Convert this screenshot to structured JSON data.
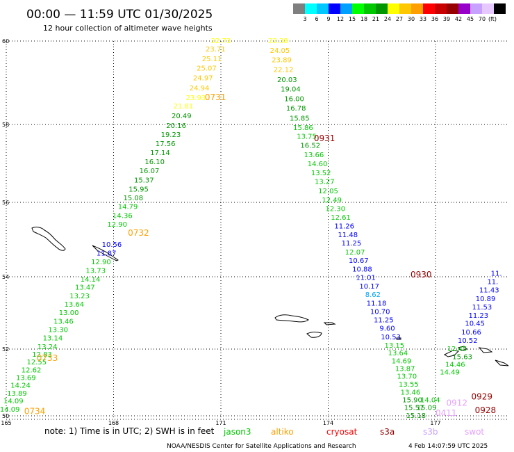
{
  "title": "00:00 — 11:59 UTC 01/30/2025",
  "subtitle": "12 hour collection of altimeter wave heights",
  "scale": {
    "unit": "(ft)",
    "colors": [
      "#7f7f7f",
      "#00ffff",
      "#00c8ff",
      "#0000ff",
      "#00a0ff",
      "#00ff00",
      "#00c800",
      "#009600",
      "#ffff00",
      "#ffc800",
      "#ffa000",
      "#ff0000",
      "#c80000",
      "#960000",
      "#9600c8",
      "#c8a0ff",
      "#e6c8ff",
      "#000000"
    ],
    "labels": [
      "3",
      "6",
      "9",
      "12",
      "15",
      "18",
      "21",
      "24",
      "27",
      "30",
      "33",
      "36",
      "39",
      "42",
      "45",
      "70"
    ]
  },
  "map": {
    "lat_range": [
      50,
      60
    ],
    "lon_range": [
      165,
      178.5
    ],
    "lat_lines": [
      60,
      58,
      56,
      54,
      52,
      50
    ],
    "lat_labels": [
      "60",
      "58",
      "56",
      "54",
      "52",
      "50"
    ],
    "lon_lines": [
      165,
      168,
      171,
      174,
      177
    ],
    "lon_labels": [
      "165",
      "168",
      "171",
      "174",
      "177"
    ]
  },
  "passes": [
    {
      "label": "0731",
      "color": "#ffa000",
      "lat": 58.58,
      "lon": 170.55
    },
    {
      "label": "0931",
      "color": "#960000",
      "lat": 57.57,
      "lon": 173.6
    },
    {
      "label": "0732",
      "color": "#ffa000",
      "lat": 55.1,
      "lon": 168.4
    },
    {
      "label": "0930",
      "color": "#960000",
      "lat": 53.98,
      "lon": 176.3
    },
    {
      "label": "0733",
      "color": "#ffa000",
      "lat": 51.65,
      "lon": 165.85
    },
    {
      "label": "0734",
      "color": "#ffa000",
      "lat": 50.05,
      "lon": 165.5
    },
    {
      "label": "0929",
      "color": "#960000",
      "lat": 50.49,
      "lon": 178.0
    },
    {
      "label": "0928",
      "color": "#960000",
      "lat": 50.08,
      "lon": 178.1
    },
    {
      "label": "0912",
      "color": "#e6a0ff",
      "lat": 50.3,
      "lon": 177.3
    },
    {
      "label": "0411",
      "color": "#e6a0ff",
      "lat": 50.0,
      "lon": 177.0
    }
  ],
  "observations": [
    {
      "v": "22.73",
      "c": "#ffff00",
      "lat": 59.95,
      "lon": 171.0
    },
    {
      "v": "23.71",
      "c": "#ffc800",
      "lat": 59.75,
      "lon": 170.85
    },
    {
      "v": "25.11",
      "c": "#ffc800",
      "lat": 59.52,
      "lon": 170.75
    },
    {
      "v": "25.07",
      "c": "#ffc800",
      "lat": 59.29,
      "lon": 170.6
    },
    {
      "v": "24.97",
      "c": "#ffc800",
      "lat": 59.06,
      "lon": 170.5
    },
    {
      "v": "24.94",
      "c": "#ffc800",
      "lat": 58.82,
      "lon": 170.4
    },
    {
      "v": "23.93",
      "c": "#ffff00",
      "lat": 58.58,
      "lon": 170.3
    },
    {
      "v": "21.81",
      "c": "#ffff00",
      "lat": 58.38,
      "lon": 169.95
    },
    {
      "v": "20.49",
      "c": "#009600",
      "lat": 58.15,
      "lon": 169.9
    },
    {
      "v": "20.16",
      "c": "#009600",
      "lat": 57.91,
      "lon": 169.75
    },
    {
      "v": "19.23",
      "c": "#009600",
      "lat": 57.68,
      "lon": 169.6
    },
    {
      "v": "17.56",
      "c": "#009600",
      "lat": 57.45,
      "lon": 169.45
    },
    {
      "v": "17.14",
      "c": "#009600",
      "lat": 57.21,
      "lon": 169.3
    },
    {
      "v": "16.10",
      "c": "#009600",
      "lat": 56.98,
      "lon": 169.15
    },
    {
      "v": "16.07",
      "c": "#009600",
      "lat": 56.75,
      "lon": 169.0
    },
    {
      "v": "15.37",
      "c": "#009600",
      "lat": 56.51,
      "lon": 168.85
    },
    {
      "v": "15.95",
      "c": "#009600",
      "lat": 56.28,
      "lon": 168.7
    },
    {
      "v": "15.08",
      "c": "#009600",
      "lat": 56.05,
      "lon": 168.55
    },
    {
      "v": "14.79",
      "c": "#00c800",
      "lat": 55.82,
      "lon": 168.4
    },
    {
      "v": "14.36",
      "c": "#00c800",
      "lat": 55.58,
      "lon": 168.25
    },
    {
      "v": "12.90",
      "c": "#00c800",
      "lat": 55.35,
      "lon": 168.1
    },
    {
      "v": "10.56",
      "c": "#0000ff",
      "lat": 54.8,
      "lon": 167.95
    },
    {
      "v": "11.87",
      "c": "#0000ff",
      "lat": 54.57,
      "lon": 167.8
    },
    {
      "v": "12.90",
      "c": "#00c800",
      "lat": 54.34,
      "lon": 167.65
    },
    {
      "v": "13.73",
      "c": "#00c800",
      "lat": 54.1,
      "lon": 167.5
    },
    {
      "v": "14.14",
      "c": "#00c800",
      "lat": 53.87,
      "lon": 167.35
    },
    {
      "v": "13.47",
      "c": "#00c800",
      "lat": 53.64,
      "lon": 167.2
    },
    {
      "v": "13.23",
      "c": "#00c800",
      "lat": 53.4,
      "lon": 167.05
    },
    {
      "v": "13.64",
      "c": "#00c800",
      "lat": 53.17,
      "lon": 166.9
    },
    {
      "v": "13.00",
      "c": "#00c800",
      "lat": 52.94,
      "lon": 166.75
    },
    {
      "v": "13.46",
      "c": "#00c800",
      "lat": 52.7,
      "lon": 166.6
    },
    {
      "v": "13.30",
      "c": "#00c800",
      "lat": 52.47,
      "lon": 166.45
    },
    {
      "v": "13.14",
      "c": "#00c800",
      "lat": 52.24,
      "lon": 166.3
    },
    {
      "v": "13.24",
      "c": "#00c800",
      "lat": 52.0,
      "lon": 166.15
    },
    {
      "v": "12.83",
      "c": "#00c800",
      "lat": 51.77,
      "lon": 166.0
    },
    {
      "v": "12.55",
      "c": "#00c800",
      "lat": 51.54,
      "lon": 165.85
    },
    {
      "v": "12.62",
      "c": "#00c800",
      "lat": 51.3,
      "lon": 165.7
    },
    {
      "v": "13.69",
      "c": "#00c800",
      "lat": 51.07,
      "lon": 165.55
    },
    {
      "v": "14.24",
      "c": "#00c800",
      "lat": 50.84,
      "lon": 165.4
    },
    {
      "v": "13.89",
      "c": "#00c800",
      "lat": 50.6,
      "lon": 165.3
    },
    {
      "v": "14.09",
      "c": "#00c800",
      "lat": 50.37,
      "lon": 165.2
    },
    {
      "v": "14.09",
      "c": "#00c800",
      "lat": 50.13,
      "lon": 165.1
    },
    {
      "v": "22.38",
      "c": "#ffff00",
      "lat": 59.95,
      "lon": 172.6
    },
    {
      "v": "24.05",
      "c": "#ffc800",
      "lat": 59.72,
      "lon": 172.65
    },
    {
      "v": "23.89",
      "c": "#ffc800",
      "lat": 59.49,
      "lon": 172.7
    },
    {
      "v": "22.12",
      "c": "#ffc800",
      "lat": 59.26,
      "lon": 172.75
    },
    {
      "v": "20.03",
      "c": "#009600",
      "lat": 59.02,
      "lon": 172.85
    },
    {
      "v": "19.04",
      "c": "#009600",
      "lat": 58.79,
      "lon": 172.95
    },
    {
      "v": "16.00",
      "c": "#009600",
      "lat": 58.56,
      "lon": 173.05
    },
    {
      "v": "16.78",
      "c": "#009600",
      "lat": 58.33,
      "lon": 173.1
    },
    {
      "v": "15.85",
      "c": "#009600",
      "lat": 58.09,
      "lon": 173.2
    },
    {
      "v": "15.86",
      "c": "#00c800",
      "lat": 57.86,
      "lon": 173.3
    },
    {
      "v": "13.75",
      "c": "#00c800",
      "lat": 57.63,
      "lon": 173.4
    },
    {
      "v": "16.52",
      "c": "#009600",
      "lat": 57.4,
      "lon": 173.5
    },
    {
      "v": "13.66",
      "c": "#00c800",
      "lat": 57.16,
      "lon": 173.6
    },
    {
      "v": "14.60",
      "c": "#00c800",
      "lat": 56.93,
      "lon": 173.7
    },
    {
      "v": "13.52",
      "c": "#00c800",
      "lat": 56.7,
      "lon": 173.8
    },
    {
      "v": "13.27",
      "c": "#00c800",
      "lat": 56.47,
      "lon": 173.9
    },
    {
      "v": "12.05",
      "c": "#00c800",
      "lat": 56.23,
      "lon": 174.0
    },
    {
      "v": "12.49",
      "c": "#00c800",
      "lat": 56.0,
      "lon": 174.1
    },
    {
      "v": "12.30",
      "c": "#00c800",
      "lat": 55.77,
      "lon": 174.2
    },
    {
      "v": "12.61",
      "c": "#00c800",
      "lat": 55.53,
      "lon": 174.35
    },
    {
      "v": "11.26",
      "c": "#0000ff",
      "lat": 55.3,
      "lon": 174.45
    },
    {
      "v": "11.48",
      "c": "#0000ff",
      "lat": 55.07,
      "lon": 174.55
    },
    {
      "v": "11.25",
      "c": "#0000ff",
      "lat": 54.84,
      "lon": 174.65
    },
    {
      "v": "12.07",
      "c": "#00c800",
      "lat": 54.6,
      "lon": 174.75
    },
    {
      "v": "10.67",
      "c": "#0000ff",
      "lat": 54.37,
      "lon": 174.85
    },
    {
      "v": "10.88",
      "c": "#0000ff",
      "lat": 54.14,
      "lon": 174.95
    },
    {
      "v": "11.01",
      "c": "#0000ff",
      "lat": 53.91,
      "lon": 175.05
    },
    {
      "v": "10.17",
      "c": "#0000ff",
      "lat": 53.67,
      "lon": 175.15
    },
    {
      "v": "8.62",
      "c": "#00a0ff",
      "lat": 53.44,
      "lon": 175.25
    },
    {
      "v": "11.18",
      "c": "#0000ff",
      "lat": 53.2,
      "lon": 175.35
    },
    {
      "v": "10.70",
      "c": "#0000ff",
      "lat": 52.97,
      "lon": 175.45
    },
    {
      "v": "11.25",
      "c": "#0000ff",
      "lat": 52.74,
      "lon": 175.55
    },
    {
      "v": "9.60",
      "c": "#0000ff",
      "lat": 52.51,
      "lon": 175.65
    },
    {
      "v": "10.53",
      "c": "#0000ff",
      "lat": 52.27,
      "lon": 175.75
    },
    {
      "v": "13.15",
      "c": "#00c800",
      "lat": 52.04,
      "lon": 175.85
    },
    {
      "v": "13.64",
      "c": "#00c800",
      "lat": 51.81,
      "lon": 175.95
    },
    {
      "v": "14.69",
      "c": "#00c800",
      "lat": 51.57,
      "lon": 176.05
    },
    {
      "v": "13.87",
      "c": "#00c800",
      "lat": 51.34,
      "lon": 176.15
    },
    {
      "v": "13.70",
      "c": "#00c800",
      "lat": 51.11,
      "lon": 176.2
    },
    {
      "v": "13.55",
      "c": "#00c800",
      "lat": 50.88,
      "lon": 176.25
    },
    {
      "v": "13.46",
      "c": "#00c800",
      "lat": 50.64,
      "lon": 176.3
    },
    {
      "v": "15.90",
      "c": "#009600",
      "lat": 50.41,
      "lon": 176.35
    },
    {
      "v": "15.57",
      "c": "#009600",
      "lat": 50.18,
      "lon": 176.4
    },
    {
      "v": "15.18",
      "c": "#009600",
      "lat": 49.94,
      "lon": 176.45
    },
    {
      "v": "11.",
      "c": "#0000ff",
      "lat": 54.03,
      "lon": 178.7
    },
    {
      "v": "11.",
      "c": "#0000ff",
      "lat": 53.8,
      "lon": 178.6
    },
    {
      "v": "11.43",
      "c": "#0000ff",
      "lat": 53.57,
      "lon": 178.5
    },
    {
      "v": "10.89",
      "c": "#0000ff",
      "lat": 53.33,
      "lon": 178.4
    },
    {
      "v": "11.53",
      "c": "#0000ff",
      "lat": 53.1,
      "lon": 178.3
    },
    {
      "v": "11.23",
      "c": "#0000ff",
      "lat": 52.87,
      "lon": 178.2
    },
    {
      "v": "10.45",
      "c": "#0000ff",
      "lat": 52.64,
      "lon": 178.1
    },
    {
      "v": "10.66",
      "c": "#0000ff",
      "lat": 52.4,
      "lon": 178.0
    },
    {
      "v": "10.52",
      "c": "#0000ff",
      "lat": 52.17,
      "lon": 177.9
    },
    {
      "v": "12.45",
      "c": "#00c800",
      "lat": 51.94,
      "lon": 177.6
    },
    {
      "v": "15.63",
      "c": "#009600",
      "lat": 51.7,
      "lon": 177.75
    },
    {
      "v": "14.46",
      "c": "#00c800",
      "lat": 51.47,
      "lon": 177.55
    },
    {
      "v": "14.49",
      "c": "#00c800",
      "lat": 51.24,
      "lon": 177.4
    },
    {
      "v": "14.04",
      "c": "#00c800",
      "lat": 50.41,
      "lon": 176.85
    },
    {
      "v": "15.09",
      "c": "#009600",
      "lat": 50.18,
      "lon": 176.75
    }
  ],
  "notes": {
    "text": "note: 1) Time is in UTC; 2) SWH is in feet",
    "satellites": [
      {
        "name": "jason3",
        "color": "#00c800"
      },
      {
        "name": "altiko",
        "color": "#ffa000"
      },
      {
        "name": "cryosat",
        "color": "#ff0000"
      },
      {
        "name": "s3a",
        "color": "#960000"
      },
      {
        "name": "s3b",
        "color": "#c8a0ff"
      },
      {
        "name": "swot",
        "color": "#e6a0ff"
      }
    ]
  },
  "footer": {
    "credit": "NOAA/NESDIS Center for Satellite Applications and Research",
    "timestamp": "4 Feb 14:07:59 UTC 2025"
  }
}
